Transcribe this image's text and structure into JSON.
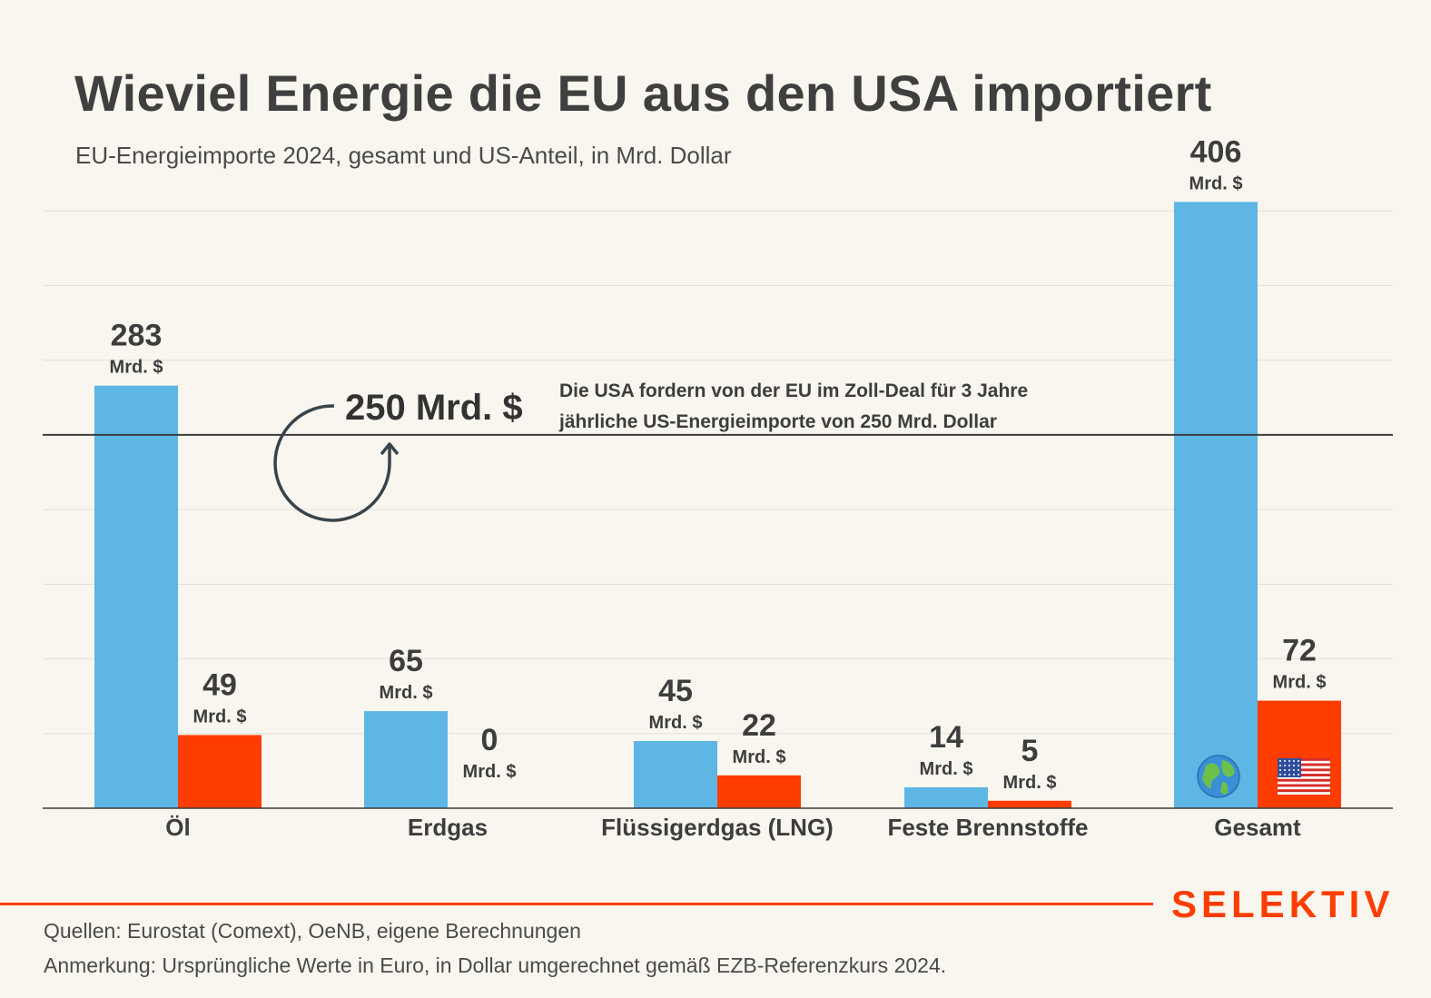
{
  "header": {
    "title": "Wieviel Energie die EU aus den USA importiert",
    "subtitle": "EU-Energieimporte 2024, gesamt und US-Anteil, in Mrd. Dollar"
  },
  "chart_data": {
    "type": "bar",
    "categories": [
      "Öl",
      "Erdgas",
      "Flüssigerdgas (LNG)",
      "Feste Brennstoffe",
      "Gesamt"
    ],
    "series": [
      {
        "values": [
          283,
          65,
          45,
          14,
          406
        ],
        "color": "#5db6e4"
      },
      {
        "values": [
          49,
          0,
          22,
          5,
          72
        ],
        "color": "#ff3d00"
      }
    ],
    "value_unit": "Mrd. $",
    "ylim": [
      0,
      450
    ],
    "grid": true,
    "reference_line": {
      "value": 250,
      "label": "250 Mrd. $",
      "annotation_line1": "Die USA fordern von der EU im Zoll-Deal für 3 Jahre",
      "annotation_line2": "jährliche US-Energieimporte von 250 Mrd. Dollar"
    },
    "bar_icons": {
      "total": "globe-icon",
      "us": "us-flag-icon"
    }
  },
  "footer": {
    "brand": "SELEKTIV",
    "source": "Quellen: Eurostat (Comext), OeNB, eigene Berechnungen",
    "note": "Anmerkung: Ursprüngliche Werte in Euro, in Dollar umgerechnet gemäß EZB-Referenzkurs 2024."
  }
}
